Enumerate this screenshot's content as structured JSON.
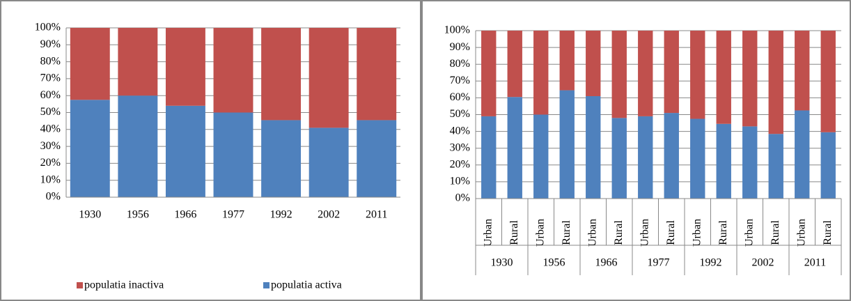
{
  "chart_data": [
    {
      "type": "bar",
      "stacked": true,
      "legend": "bottom",
      "grid": true,
      "categories": [
        "1930",
        "1956",
        "1966",
        "1977",
        "1992",
        "2002",
        "2011"
      ],
      "series": [
        {
          "name": "populatia activa",
          "color": "#4f81bd",
          "values": [
            57.5,
            60,
            54,
            50,
            45.5,
            41,
            45.5
          ]
        },
        {
          "name": "populatia inactiva",
          "color": "#c0504d",
          "values": [
            42.5,
            40,
            46,
            50,
            54.5,
            59,
            54.5
          ]
        }
      ],
      "ylim": [
        0,
        100
      ],
      "yticks": [
        {
          "value": 0,
          "label": "0%"
        },
        {
          "value": 10,
          "label": "10%"
        },
        {
          "value": 20,
          "label": "20%"
        },
        {
          "value": 30,
          "label": "30%"
        },
        {
          "value": 40,
          "label": "40%"
        },
        {
          "value": 50,
          "label": "50%"
        },
        {
          "value": 60,
          "label": "60%"
        },
        {
          "value": 70,
          "label": "70%"
        },
        {
          "value": 80,
          "label": "80%"
        },
        {
          "value": 90,
          "label": "90%"
        },
        {
          "value": 100,
          "label": "100%"
        }
      ]
    },
    {
      "type": "bar",
      "stacked": true,
      "grid": true,
      "categories": [
        "Urban",
        "Rural",
        "Urban",
        "Rural",
        "Urban",
        "Rural",
        "Urban",
        "Rural",
        "Urban",
        "Rural",
        "Urban",
        "Rural",
        "Urban",
        "Rural"
      ],
      "groups": [
        "1930",
        "1956",
        "1966",
        "1977",
        "1992",
        "2002",
        "2011"
      ],
      "series": [
        {
          "color": "#4f81bd",
          "values": [
            49,
            60.5,
            50,
            64.5,
            61,
            48,
            49,
            51,
            47.5,
            44.5,
            43,
            38.5,
            52.5,
            39.5
          ]
        },
        {
          "color": "#c0504d",
          "values": [
            51,
            39.5,
            50,
            35.5,
            39,
            52,
            51,
            49,
            52.5,
            55.5,
            57,
            61.5,
            47.5,
            60.5
          ]
        }
      ],
      "ylim": [
        0,
        100
      ],
      "yticks": [
        {
          "value": 0,
          "label": "0%"
        },
        {
          "value": 10,
          "label": "10%"
        },
        {
          "value": 20,
          "label": "20%"
        },
        {
          "value": 30,
          "label": "30%"
        },
        {
          "value": 40,
          "label": "40%"
        },
        {
          "value": 50,
          "label": "50%"
        },
        {
          "value": 60,
          "label": "60%"
        },
        {
          "value": 70,
          "label": "70%"
        },
        {
          "value": 80,
          "label": "80%"
        },
        {
          "value": 90,
          "label": "90%"
        },
        {
          "value": 100,
          "label": "100%"
        }
      ]
    }
  ]
}
